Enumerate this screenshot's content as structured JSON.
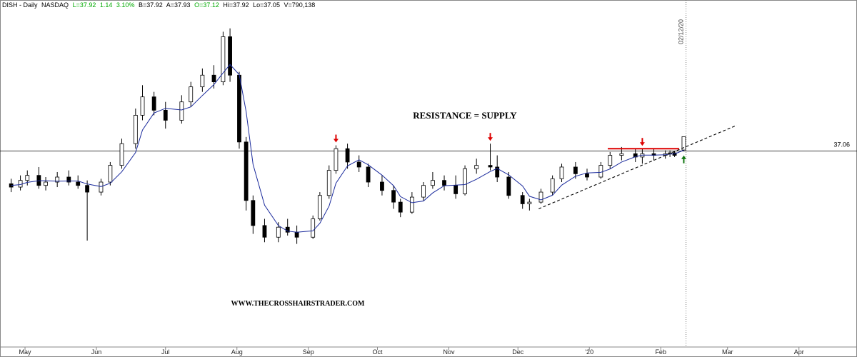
{
  "header": {
    "symbol": "DISH - Daily",
    "exchange": "NASDAQ",
    "last": "L=37.92",
    "change": "1.14",
    "change_pct": "3.10%",
    "bid": "B=37.92",
    "ask": "A=37.93",
    "open": "O=37.12",
    "high": "Hi=37.92",
    "low": "Lo=37.05",
    "volume": "V=790,138"
  },
  "colors": {
    "up_text": "#00aa00",
    "red_marker": "#dd0000",
    "green_marker": "#117711",
    "ma_line": "#1a2a9c",
    "resistance_line": "#000000"
  },
  "annotations": {
    "title": "RESISTANCE = SUPPLY",
    "website": "WWW.THECROSSHAIRSTRADER.COM",
    "price_label": "37.06",
    "date_label": "02/12/20"
  },
  "chart_data": {
    "type": "candlestick",
    "x_axis_labels": [
      "May",
      "Jun",
      "Jul",
      "Aug",
      "Sep",
      "Oct",
      "Nov",
      "Dec",
      "'20",
      "Feb",
      "Mar",
      "Apr"
    ],
    "x_range": [
      "2019-04-22",
      "2020-04-20"
    ],
    "y_range": [
      25.5,
      45.5
    ],
    "resistance_level": 37.06,
    "vertical_marker_date": "2020-02-12",
    "ohlc": [
      [
        "2019-04-25",
        35.1,
        35.4,
        34.6,
        34.9
      ],
      [
        "2019-04-29",
        34.9,
        35.6,
        34.7,
        35.3
      ],
      [
        "2019-05-02",
        35.3,
        35.9,
        35.0,
        35.6
      ],
      [
        "2019-05-07",
        35.6,
        36.1,
        34.8,
        35.0
      ],
      [
        "2019-05-10",
        35.0,
        35.5,
        34.7,
        35.2
      ],
      [
        "2019-05-15",
        35.2,
        35.8,
        34.9,
        35.5
      ],
      [
        "2019-05-20",
        35.5,
        35.9,
        35.0,
        35.2
      ],
      [
        "2019-05-24",
        35.2,
        35.6,
        34.8,
        35.0
      ],
      [
        "2019-05-28",
        35.0,
        35.3,
        31.7,
        34.6
      ],
      [
        "2019-06-03",
        34.6,
        35.4,
        34.4,
        35.2
      ],
      [
        "2019-06-07",
        35.2,
        36.4,
        35.0,
        36.2
      ],
      [
        "2019-06-12",
        36.2,
        37.8,
        36.0,
        37.5
      ],
      [
        "2019-06-18",
        37.5,
        39.6,
        37.2,
        39.2
      ],
      [
        "2019-06-21",
        39.2,
        41.0,
        38.9,
        40.3
      ],
      [
        "2019-06-26",
        40.3,
        40.6,
        39.2,
        39.5
      ],
      [
        "2019-07-01",
        39.5,
        40.0,
        38.4,
        38.9
      ],
      [
        "2019-07-08",
        38.9,
        40.4,
        38.7,
        40.0
      ],
      [
        "2019-07-12",
        40.0,
        41.2,
        39.7,
        40.9
      ],
      [
        "2019-07-17",
        40.9,
        42.0,
        40.6,
        41.6
      ],
      [
        "2019-07-22",
        41.6,
        42.2,
        40.8,
        41.2
      ],
      [
        "2019-07-26",
        41.2,
        44.2,
        41.0,
        43.9
      ],
      [
        "2019-07-29",
        43.9,
        44.4,
        41.2,
        41.6
      ],
      [
        "2019-08-02",
        41.6,
        41.8,
        37.2,
        37.6
      ],
      [
        "2019-08-05",
        37.6,
        37.9,
        33.5,
        34.1
      ],
      [
        "2019-08-08",
        34.1,
        34.4,
        32.1,
        32.6
      ],
      [
        "2019-08-13",
        32.6,
        33.0,
        31.6,
        31.9
      ],
      [
        "2019-08-19",
        31.9,
        32.8,
        31.6,
        32.5
      ],
      [
        "2019-08-23",
        32.5,
        33.0,
        32.0,
        32.2
      ],
      [
        "2019-08-27",
        32.2,
        32.6,
        31.5,
        31.9
      ],
      [
        "2019-09-03",
        31.9,
        33.2,
        31.8,
        33.0
      ],
      [
        "2019-09-06",
        33.0,
        34.6,
        32.9,
        34.4
      ],
      [
        "2019-09-10",
        34.4,
        36.2,
        34.2,
        35.9
      ],
      [
        "2019-09-13",
        35.9,
        37.4,
        35.7,
        37.2
      ],
      [
        "2019-09-18",
        37.2,
        37.5,
        36.0,
        36.4
      ],
      [
        "2019-09-23",
        36.4,
        36.8,
        35.8,
        36.1
      ],
      [
        "2019-09-27",
        36.1,
        36.3,
        34.9,
        35.2
      ],
      [
        "2019-10-03",
        35.2,
        35.6,
        34.4,
        34.7
      ],
      [
        "2019-10-08",
        34.7,
        35.0,
        33.6,
        34.0
      ],
      [
        "2019-10-11",
        34.0,
        34.2,
        33.1,
        33.4
      ],
      [
        "2019-10-16",
        33.4,
        34.6,
        33.3,
        34.3
      ],
      [
        "2019-10-21",
        34.3,
        35.2,
        34.1,
        35.0
      ],
      [
        "2019-10-25",
        35.0,
        35.8,
        34.8,
        35.3
      ],
      [
        "2019-10-30",
        35.3,
        35.6,
        34.7,
        35.0
      ],
      [
        "2019-11-04",
        35.0,
        35.6,
        34.2,
        34.5
      ],
      [
        "2019-11-08",
        34.5,
        36.2,
        34.4,
        36.0
      ],
      [
        "2019-11-13",
        36.0,
        36.6,
        35.7,
        36.2
      ],
      [
        "2019-11-19",
        36.2,
        37.5,
        35.9,
        36.1
      ],
      [
        "2019-11-22",
        36.1,
        36.8,
        35.2,
        35.5
      ],
      [
        "2019-11-27",
        35.5,
        35.8,
        34.2,
        34.4
      ],
      [
        "2019-12-03",
        34.4,
        34.6,
        33.6,
        33.9
      ],
      [
        "2019-12-06",
        33.9,
        34.2,
        33.5,
        34.0
      ],
      [
        "2019-12-11",
        34.0,
        34.8,
        33.9,
        34.6
      ],
      [
        "2019-12-16",
        34.6,
        35.6,
        34.4,
        35.4
      ],
      [
        "2019-12-20",
        35.4,
        36.3,
        35.2,
        36.1
      ],
      [
        "2019-12-26",
        36.1,
        36.4,
        35.4,
        35.7
      ],
      [
        "2019-12-31",
        35.7,
        36.0,
        35.3,
        35.5
      ],
      [
        "2020-01-06",
        35.5,
        36.4,
        35.4,
        36.2
      ],
      [
        "2020-01-10",
        36.2,
        37.0,
        36.0,
        36.8
      ],
      [
        "2020-01-15",
        36.8,
        37.3,
        36.5,
        36.9
      ],
      [
        "2020-01-21",
        36.9,
        37.2,
        36.4,
        36.7
      ],
      [
        "2020-01-24",
        36.7,
        37.2,
        36.3,
        36.9
      ],
      [
        "2020-01-29",
        36.9,
        37.2,
        36.5,
        36.8
      ],
      [
        "2020-02-03",
        36.8,
        37.1,
        36.6,
        36.9
      ],
      [
        "2020-02-05",
        36.9,
        37.1,
        36.7,
        36.95
      ],
      [
        "2020-02-07",
        36.95,
        37.08,
        36.7,
        36.8
      ],
      [
        "2020-02-11",
        37.12,
        37.92,
        37.05,
        37.92
      ]
    ],
    "moving_average_visible": true,
    "trendline": {
      "start": [
        "2019-12-10",
        33.6
      ],
      "end": [
        "2020-03-05",
        38.6
      ],
      "style": "dashed"
    },
    "markers": [
      {
        "type": "down-arrow",
        "date": "2019-09-13",
        "color": "#dd0000"
      },
      {
        "type": "down-arrow",
        "date": "2019-11-19",
        "color": "#dd0000"
      },
      {
        "type": "down-arrow",
        "date": "2020-01-24",
        "color": "#dd0000"
      },
      {
        "type": "up-arrow",
        "date": "2020-02-11",
        "color": "#117711"
      }
    ]
  }
}
